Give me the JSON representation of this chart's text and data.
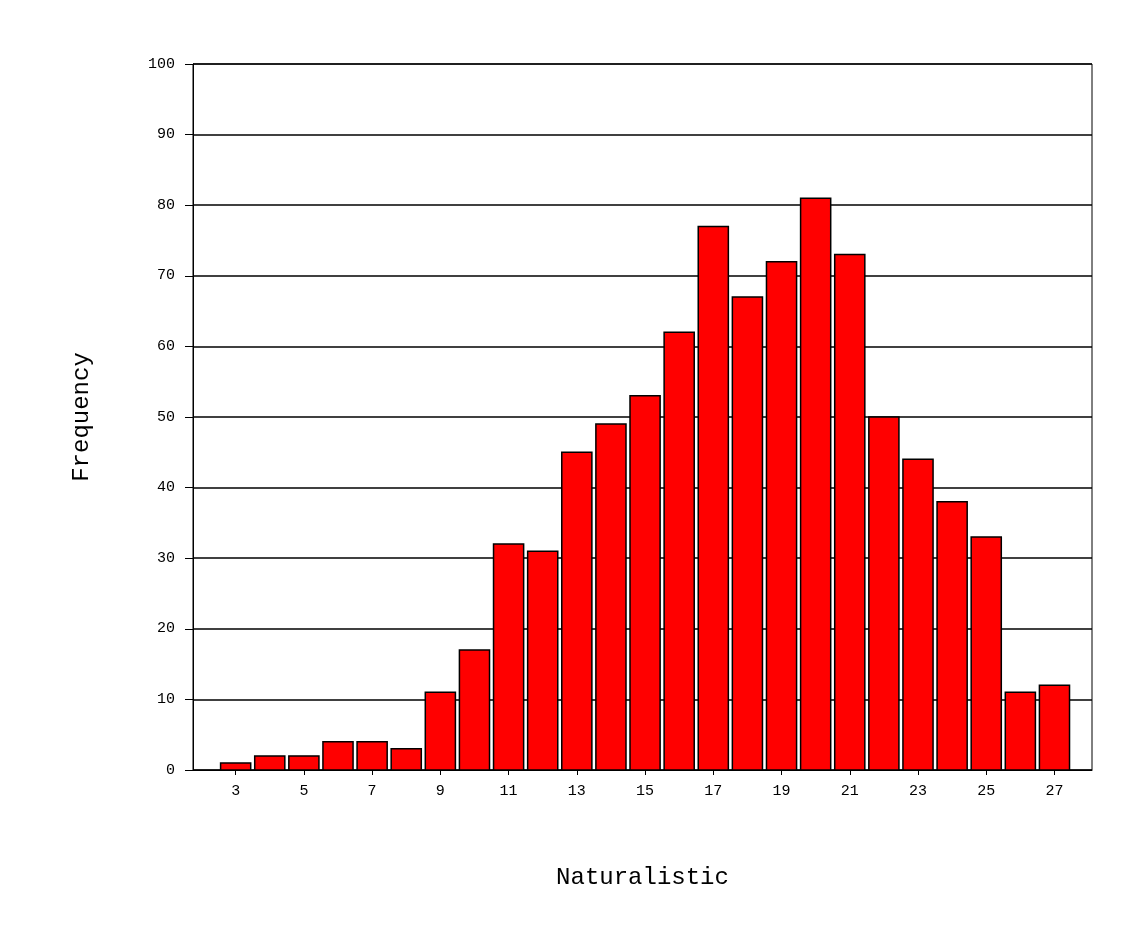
{
  "chart_data": {
    "type": "histogram",
    "xlabel": "Naturalistic",
    "ylabel": "Frequency",
    "bins": [
      2.5,
      3.5,
      4.5,
      5.5,
      6.5,
      7.5,
      8.5,
      9.5,
      10.5,
      11.5,
      12.5,
      13.5,
      14.5,
      15.5,
      16.5,
      17.5,
      18.5,
      19.5,
      20.5,
      21.5,
      22.5,
      23.5,
      24.5,
      25.5,
      26.5,
      27.5
    ],
    "values": [
      1,
      2,
      2,
      4,
      4,
      3,
      11,
      17,
      32,
      31,
      45,
      49,
      53,
      62,
      77,
      67,
      72,
      81,
      73,
      50,
      44,
      38,
      33,
      11,
      12
    ],
    "color": "#ff0000",
    "xlim": [
      1.75,
      28.1
    ],
    "xticks": [
      3,
      5,
      7,
      9,
      11,
      13,
      15,
      17,
      19,
      21,
      23,
      25,
      27
    ],
    "ylim": [
      0,
      100
    ],
    "yticks": [
      0,
      10,
      20,
      30,
      40,
      50,
      60,
      70,
      80,
      90,
      100
    ],
    "grid": "y"
  }
}
